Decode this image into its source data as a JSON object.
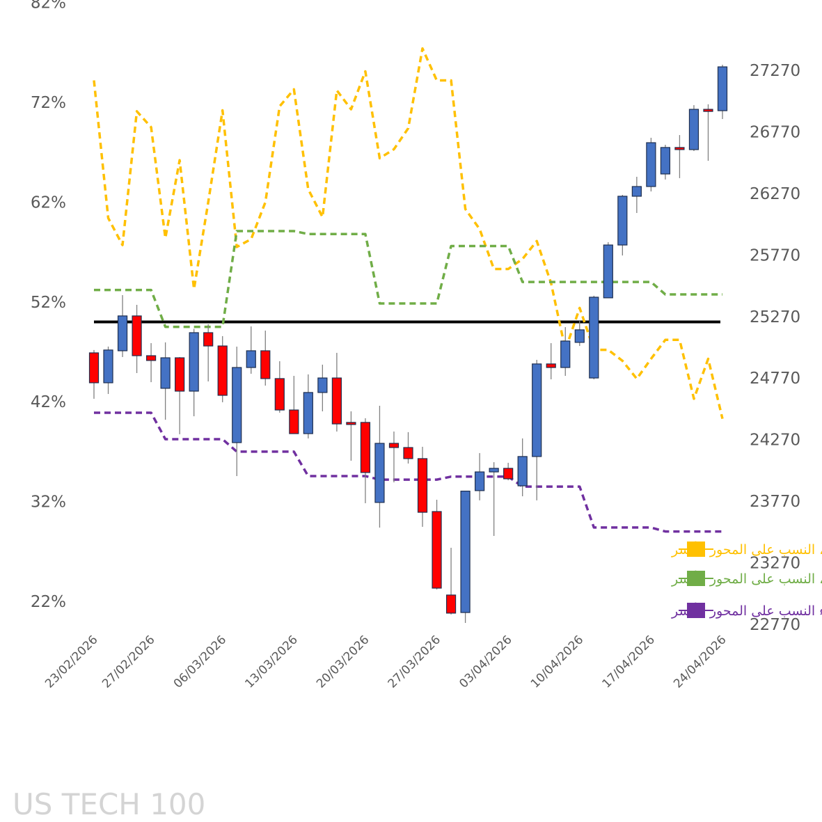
{
  "chart_data": {
    "type": "candlestick-with-lines",
    "title": "US TECH 100",
    "left_axis": {
      "label": "",
      "ticks": [
        "82%",
        "72%",
        "62%",
        "52%",
        "42%",
        "32%",
        "22%"
      ],
      "range": [
        22,
        82
      ],
      "unit": "%"
    },
    "right_axis": {
      "label": "",
      "ticks": [
        "27270",
        "26770",
        "26270",
        "25770",
        "25270",
        "24770",
        "24270",
        "23770",
        "23270",
        "22770"
      ],
      "range": [
        22770,
        27270
      ]
    },
    "x_tick_labels": [
      {
        "index": 0,
        "label": "23/02/2026"
      },
      {
        "index": 4,
        "label": "27/02/2026"
      },
      {
        "index": 9,
        "label": "06/03/2026"
      },
      {
        "index": 14,
        "label": "13/03/2026"
      },
      {
        "index": 19,
        "label": "20/03/2026"
      },
      {
        "index": 24,
        "label": "27/03/2026"
      },
      {
        "index": 29,
        "label": "03/04/2026"
      },
      {
        "index": 34,
        "label": "10/04/2026"
      },
      {
        "index": 39,
        "label": "17/04/2026"
      },
      {
        "index": 44,
        "label": "24/04/2026"
      }
    ],
    "reference_line_pct": 50,
    "candles": [
      [
        24975,
        24998,
        24602,
        24732
      ],
      [
        24732,
        25026,
        24641,
        24998
      ],
      [
        24992,
        25444,
        24941,
        25275
      ],
      [
        25275,
        25365,
        24811,
        24952
      ],
      [
        24952,
        25054,
        24737,
        24913
      ],
      [
        24687,
        25060,
        24432,
        24935
      ],
      [
        24935,
        24941,
        24314,
        24664
      ],
      [
        24664,
        25170,
        24460,
        25139
      ],
      [
        25139,
        25207,
        24743,
        25031
      ],
      [
        25031,
        25111,
        24574,
        24630
      ],
      [
        24246,
        25026,
        23974,
        24856
      ],
      [
        24856,
        25190,
        24805,
        24992
      ],
      [
        24992,
        25156,
        24709,
        24766
      ],
      [
        24766,
        24907,
        24489,
        24511
      ],
      [
        24511,
        24788,
        24319,
        24319
      ],
      [
        24319,
        24800,
        24280,
        24653
      ],
      [
        24653,
        24879,
        24500,
        24771
      ],
      [
        24771,
        24975,
        24336,
        24398
      ],
      [
        24410,
        24500,
        24099,
        24404
      ],
      [
        24410,
        24444,
        23754,
        24003
      ],
      [
        23760,
        24545,
        23556,
        24240
      ],
      [
        24240,
        24336,
        23923,
        24206
      ],
      [
        24206,
        24331,
        24076,
        24116
      ],
      [
        24116,
        24212,
        23562,
        23680
      ],
      [
        23686,
        23782,
        23053,
        23064
      ],
      [
        23008,
        23392,
        22850,
        22861
      ],
      [
        22866,
        23852,
        22781,
        23852
      ],
      [
        23856,
        24161,
        23777,
        24008
      ],
      [
        24008,
        24087,
        23488,
        24037
      ],
      [
        24037,
        24082,
        23940,
        23952
      ],
      [
        23895,
        24280,
        23810,
        24133
      ],
      [
        24133,
        24918,
        23777,
        24885
      ],
      [
        24885,
        25054,
        24760,
        24856
      ],
      [
        24856,
        25184,
        24788,
        25071
      ],
      [
        25060,
        25241,
        25031,
        25162
      ],
      [
        24771,
        25439,
        24760,
        25427
      ],
      [
        25422,
        25874,
        25422,
        25851
      ],
      [
        25851,
        26258,
        25766,
        26247
      ],
      [
        26247,
        26405,
        26111,
        26326
      ],
      [
        26326,
        26722,
        26286,
        26682
      ],
      [
        26428,
        26665,
        26383,
        26643
      ],
      [
        26643,
        26744,
        26394,
        26626
      ],
      [
        26626,
        26987,
        26614,
        26953
      ],
      [
        26953,
        26994,
        26535,
        26936
      ],
      [
        26942,
        27315,
        26874,
        27298
      ]
    ],
    "candle_format": [
      "open",
      "high",
      "low",
      "close"
    ],
    "series": [
      {
        "name": "توجه عملاء، نسبة الشراء، النسب على المحور الأيسر",
        "color": "#FFC000",
        "values": [
          74.2,
          60.4,
          57.7,
          71.1,
          69.5,
          58.4,
          66.2,
          53.3,
          62.0,
          71.2,
          57.5,
          58.3,
          62.0,
          71.6,
          73.3,
          63.3,
          60.5,
          73.2,
          71.3,
          75.1,
          66.4,
          67.3,
          69.4,
          77.4,
          74.2,
          74.2,
          61.3,
          59.3,
          55.3,
          55.3,
          56.3,
          58.1,
          53.9,
          47.2,
          51.4,
          47.2,
          47.2,
          46.1,
          44.3,
          46.3,
          48.2,
          48.2,
          42.3,
          46.3,
          40.3
        ]
      },
      {
        "name": "توجه المؤسسات، نسبة الشراء، النسب على المحور الأيسر",
        "color": "#70AD47",
        "values": [
          53.2,
          53.2,
          53.2,
          53.2,
          53.2,
          49.5,
          49.5,
          49.5,
          49.5,
          49.5,
          59.1,
          59.1,
          59.1,
          59.1,
          59.1,
          58.8,
          58.8,
          58.8,
          58.8,
          58.8,
          51.85,
          51.85,
          51.85,
          51.85,
          51.85,
          57.6,
          57.6,
          57.6,
          57.6,
          57.6,
          54.0,
          54.0,
          54.0,
          54.0,
          54.0,
          54.0,
          54.0,
          54.0,
          54.0,
          54.0,
          52.75,
          52.75,
          52.75,
          52.75,
          52.75
        ]
      },
      {
        "name": "توجه صناديق الرفع المالي، نسبة الشراء النسب على المحور الأيسر",
        "color": "#7030A0",
        "values": [
          40.9,
          40.9,
          40.9,
          40.9,
          40.9,
          38.25,
          38.25,
          38.25,
          38.25,
          38.25,
          37.0,
          37.0,
          37.0,
          37.0,
          37.0,
          34.55,
          34.55,
          34.55,
          34.55,
          34.55,
          34.2,
          34.2,
          34.2,
          34.2,
          34.2,
          34.5,
          34.5,
          34.5,
          34.5,
          34.5,
          33.5,
          33.5,
          33.5,
          33.5,
          33.5,
          29.4,
          29.4,
          29.4,
          29.4,
          29.4,
          29.0,
          29.0,
          29.0,
          29.0,
          29.0
        ]
      }
    ],
    "colors": {
      "bull": "#4472C4",
      "bear": "#FF0000",
      "wick": "#808080",
      "reference": "#000000",
      "axis_text": "#595959"
    },
    "legend_position": "bottom-right",
    "grid": false
  }
}
